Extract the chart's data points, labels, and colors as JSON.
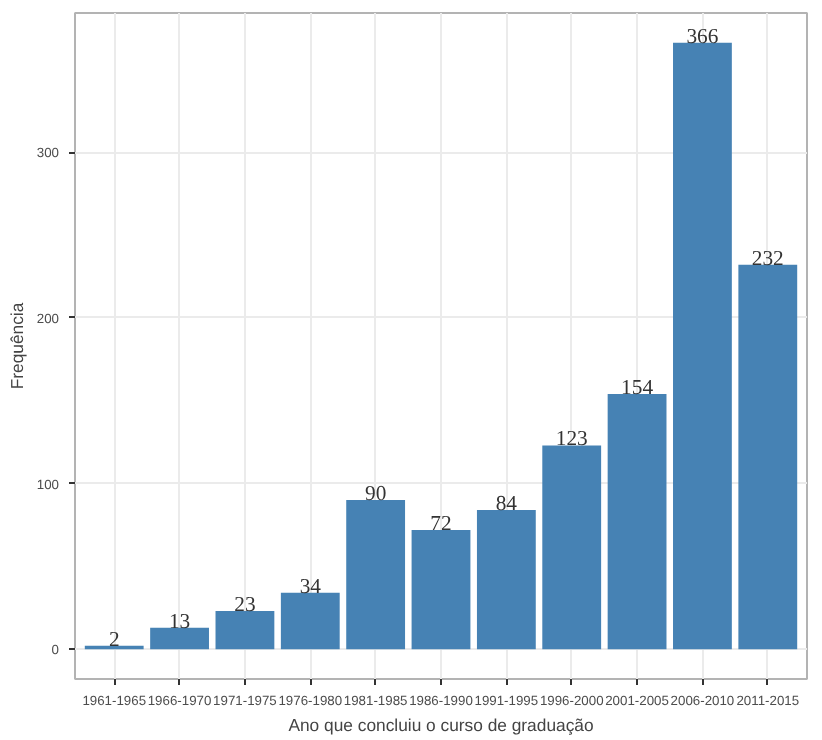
{
  "chart_data": {
    "type": "bar",
    "xlabel": "Ano que concluiu o curso de graduação",
    "ylabel": "Frequência",
    "categories": [
      "1961-1965",
      "1966-1970",
      "1971-1975",
      "1976-1980",
      "1981-1985",
      "1986-1990",
      "1991-1995",
      "1996-2000",
      "2001-2005",
      "2006-2010",
      "2011-2015"
    ],
    "values": [
      2,
      13,
      23,
      34,
      90,
      72,
      84,
      123,
      154,
      366,
      232
    ],
    "color": "#4682b4",
    "data_labels": true,
    "grid": true,
    "ylim": [
      -18,
      384
    ],
    "yticks": [
      0,
      100,
      200,
      300
    ]
  }
}
